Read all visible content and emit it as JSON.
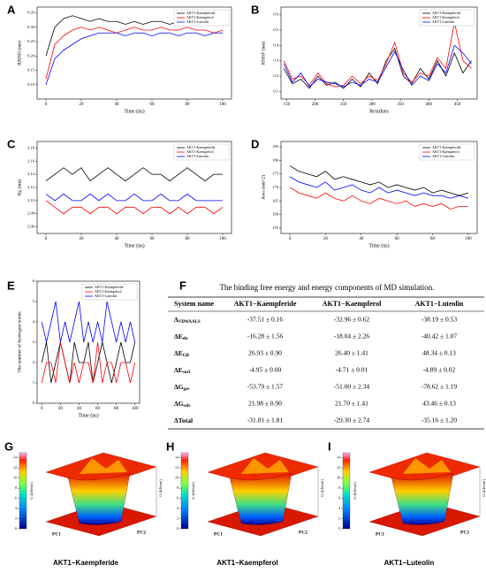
{
  "chart_data": [
    {
      "type": "line",
      "panel": "A",
      "xlabel": "Time (ns)",
      "ylabel": "RMSD (nm)",
      "x": [
        0,
        5,
        10,
        15,
        20,
        25,
        30,
        35,
        40,
        45,
        50,
        55,
        60,
        65,
        70,
        75,
        80,
        85,
        90,
        95,
        100
      ],
      "xlim": [
        -5,
        105
      ],
      "xticks": [
        0,
        20,
        40,
        60,
        80,
        100
      ],
      "ylim": [
        0.05,
        0.37
      ],
      "yticks": [
        {
          "value": 0.1,
          "label": "0.10"
        },
        0.15,
        {
          "value": 0.2,
          "label": "0.20"
        },
        0.25,
        {
          "value": 0.3,
          "label": "0.30"
        },
        0.35
      ],
      "legend": "upper right",
      "series": [
        {
          "name": "AKT1-Kaempferide",
          "color": "#000000",
          "values": [
            0.2,
            0.3,
            0.33,
            0.34,
            0.33,
            0.32,
            0.33,
            0.32,
            0.32,
            0.31,
            0.32,
            0.31,
            0.32,
            0.32,
            0.31,
            0.32,
            0.32,
            0.31,
            0.32,
            0.32,
            0.31
          ]
        },
        {
          "name": "AKT1-Kaempferol",
          "color": "#ff0000",
          "values": [
            0.12,
            0.24,
            0.27,
            0.29,
            0.3,
            0.29,
            0.3,
            0.29,
            0.28,
            0.29,
            0.3,
            0.29,
            0.29,
            0.3,
            0.29,
            0.29,
            0.3,
            0.29,
            0.29,
            0.28,
            0.29
          ]
        },
        {
          "name": "AKT1-Luteolin",
          "color": "#0000ff",
          "values": [
            0.1,
            0.19,
            0.22,
            0.24,
            0.26,
            0.27,
            0.28,
            0.28,
            0.28,
            0.27,
            0.28,
            0.28,
            0.27,
            0.28,
            0.28,
            0.27,
            0.28,
            0.28,
            0.27,
            0.28,
            0.28
          ]
        }
      ]
    },
    {
      "type": "line",
      "panel": "B",
      "xlabel": "Residues",
      "ylabel": "RMSF (nm)",
      "x": [
        145,
        160,
        175,
        190,
        205,
        220,
        235,
        250,
        265,
        280,
        295,
        310,
        325,
        340,
        355,
        370,
        385,
        400,
        415,
        430,
        445,
        460,
        475
      ],
      "xlim": [
        140,
        485
      ],
      "xticks": [
        150,
        200,
        250,
        300,
        350,
        400,
        450
      ],
      "ylim": [
        0.05,
        0.65
      ],
      "yticks": [
        0.1,
        0.2,
        0.3,
        0.4,
        0.5,
        0.6
      ],
      "legend": "upper right",
      "series": [
        {
          "name": "AKT1-Kaempferide",
          "color": "#000000",
          "values": [
            0.25,
            0.15,
            0.18,
            0.12,
            0.2,
            0.14,
            0.16,
            0.12,
            0.18,
            0.13,
            0.22,
            0.15,
            0.3,
            0.38,
            0.2,
            0.15,
            0.25,
            0.18,
            0.3,
            0.2,
            0.35,
            0.22,
            0.3
          ]
        },
        {
          "name": "AKT1-Kaempferol",
          "color": "#ff0000",
          "values": [
            0.3,
            0.18,
            0.2,
            0.14,
            0.22,
            0.15,
            0.13,
            0.14,
            0.2,
            0.15,
            0.2,
            0.17,
            0.28,
            0.42,
            0.22,
            0.16,
            0.22,
            0.2,
            0.32,
            0.25,
            0.55,
            0.3,
            0.25
          ]
        },
        {
          "name": "AKT1-Luteolin",
          "color": "#0000ff",
          "values": [
            0.28,
            0.16,
            0.22,
            0.13,
            0.18,
            0.16,
            0.15,
            0.13,
            0.16,
            0.14,
            0.18,
            0.16,
            0.26,
            0.36,
            0.24,
            0.14,
            0.2,
            0.17,
            0.28,
            0.22,
            0.4,
            0.35,
            0.28
          ]
        }
      ]
    },
    {
      "type": "line",
      "panel": "C",
      "xlabel": "Time (ns)",
      "ylabel": "Rg (nm)",
      "x": [
        0,
        5,
        10,
        15,
        20,
        25,
        30,
        35,
        40,
        45,
        50,
        55,
        60,
        65,
        70,
        75,
        80,
        85,
        90,
        95,
        100
      ],
      "xlim": [
        -5,
        105
      ],
      "xticks": [
        0,
        20,
        40,
        60,
        80,
        100
      ],
      "ylim": [
        2.05,
        2.19
      ],
      "yticks": [
        2.06,
        2.08,
        {
          "value": 2.1,
          "label": "2.10"
        },
        2.12,
        2.14,
        2.16,
        2.18
      ],
      "legend": "upper right",
      "series": [
        {
          "name": "AKT1-Kaempferide",
          "color": "#000000",
          "values": [
            2.13,
            2.14,
            2.15,
            2.14,
            2.15,
            2.13,
            2.14,
            2.15,
            2.14,
            2.13,
            2.14,
            2.15,
            2.14,
            2.14,
            2.13,
            2.14,
            2.15,
            2.14,
            2.13,
            2.14,
            2.14
          ]
        },
        {
          "name": "AKT1-Kaempferol",
          "color": "#ff0000",
          "values": [
            2.1,
            2.09,
            2.08,
            2.09,
            2.09,
            2.08,
            2.09,
            2.09,
            2.08,
            2.09,
            2.09,
            2.08,
            2.09,
            2.09,
            2.08,
            2.09,
            2.08,
            2.09,
            2.09,
            2.08,
            2.09
          ]
        },
        {
          "name": "AKT1-Luteolin",
          "color": "#0000ff",
          "values": [
            2.11,
            2.1,
            2.11,
            2.1,
            2.1,
            2.11,
            2.1,
            2.11,
            2.1,
            2.1,
            2.11,
            2.1,
            2.1,
            2.11,
            2.1,
            2.1,
            2.11,
            2.1,
            2.1,
            2.1,
            2.1
          ]
        }
      ]
    },
    {
      "type": "line",
      "panel": "D",
      "xlabel": "Time (ns)",
      "ylabel": "Area (nm^2)",
      "x": [
        0,
        5,
        10,
        15,
        20,
        25,
        30,
        35,
        40,
        45,
        50,
        55,
        60,
        65,
        70,
        75,
        80,
        85,
        90,
        95,
        100
      ],
      "xlim": [
        -5,
        105
      ],
      "xticks": [
        0,
        20,
        40,
        60,
        80,
        100
      ],
      "ylim": [
        153,
        187
      ],
      "yticks": [
        155,
        160,
        165,
        170,
        175,
        180,
        185
      ],
      "legend": "upper right",
      "series": [
        {
          "name": "AKT1-Kaempferide",
          "color": "#000000",
          "values": [
            178,
            176,
            175,
            174,
            176,
            173,
            174,
            173,
            172,
            171,
            172,
            170,
            171,
            170,
            169,
            170,
            168,
            169,
            168,
            167,
            168
          ]
        },
        {
          "name": "AKT1-Kaempferol",
          "color": "#ff0000",
          "values": [
            170,
            168,
            167,
            166,
            168,
            166,
            165,
            167,
            165,
            164,
            166,
            165,
            164,
            165,
            163,
            164,
            163,
            164,
            162,
            163,
            163
          ]
        },
        {
          "name": "AKT1-Luteolin",
          "color": "#0000ff",
          "values": [
            174,
            172,
            171,
            170,
            172,
            169,
            170,
            171,
            169,
            168,
            170,
            168,
            169,
            168,
            167,
            168,
            167,
            167,
            166,
            167,
            166
          ]
        }
      ]
    },
    {
      "type": "line",
      "panel": "E",
      "xlabel": "Time (ns)",
      "ylabel": "The number of hydrogen bonds",
      "x": [
        0,
        5,
        10,
        15,
        20,
        25,
        30,
        35,
        40,
        45,
        50,
        55,
        60,
        65,
        70,
        75,
        80,
        85,
        90,
        95,
        100
      ],
      "xlim": [
        -5,
        105
      ],
      "xticks": [
        0,
        20,
        40,
        60,
        80,
        100
      ],
      "ylim": [
        0,
        6
      ],
      "yticks": [
        0,
        1,
        2,
        3,
        4,
        5,
        6
      ],
      "legend": "upper right",
      "series": [
        {
          "name": "AKT1-Kaempferide",
          "color": "#000000",
          "values": [
            2,
            3,
            1,
            2,
            3,
            2,
            1,
            3,
            2,
            2,
            3,
            1,
            2,
            3,
            2,
            1,
            2,
            3,
            2,
            2,
            3
          ]
        },
        {
          "name": "AKT1-Kaempferol",
          "color": "#ff0000",
          "values": [
            1,
            2,
            2,
            1,
            3,
            2,
            1,
            2,
            1,
            2,
            2,
            1,
            3,
            1,
            2,
            2,
            1,
            2,
            2,
            1,
            2
          ]
        },
        {
          "name": "AKT1-Luteolin",
          "color": "#0000ff",
          "values": [
            4,
            3,
            4,
            5,
            3,
            4,
            3,
            4,
            5,
            3,
            4,
            3,
            4,
            3,
            5,
            4,
            3,
            4,
            3,
            4,
            3
          ]
        }
      ]
    },
    {
      "type": "table",
      "panel": "F",
      "title": "The binding free energy and energy components of MD simulation.",
      "header": [
        "System name",
        "AKT1−Kaempferide",
        "AKT1−Kaempferol",
        "AKT1−Luteolin"
      ],
      "rows": [
        [
          [
            "Δ",
            "VDWAALS"
          ],
          "-37.51 ± 0.16",
          "-32.96 ± 0.62",
          "-38.19 ± 0.53"
        ],
        [
          [
            "ΔE",
            "ele"
          ],
          "-16.28 ± 1.56",
          "-18.04 ± 2.26",
          "-40.42 ± 1.07"
        ],
        [
          [
            "ΔE",
            "GB"
          ],
          "26.93 ± 0.90",
          "26.40 ± 1.41",
          "48.34 ± 0.13"
        ],
        [
          [
            "ΔE",
            "surf"
          ],
          "-4.95 ± 0.00",
          "-4.71 ± 0.01",
          "-4.89 ± 0.02"
        ],
        [
          [
            "ΔG",
            "gas"
          ],
          "-53.79 ± 1.57",
          "-51.00 ± 2.34",
          "-78.62 ± 1.19"
        ],
        [
          [
            "ΔG",
            "solv"
          ],
          "21.98 ± 0.90",
          "21.70 ± 1.41",
          "43.46 ± 0.13"
        ],
        [
          [
            "ΔTotal"
          ],
          "-31.81 ± 1.81",
          "-29.30 ± 2.74",
          "-35.16 ± 1.20"
        ]
      ]
    },
    {
      "type": "surface",
      "panel": "G",
      "title": "AKT1−Kaempferide",
      "colorbar_label": "G (kJ/mol)",
      "xlabel": "PC1",
      "ylabel": "PC2",
      "zlabel": "G (kJ/mol)",
      "clim": [
        0,
        15
      ],
      "cticks": [
        0,
        2,
        4,
        6,
        8,
        10,
        12,
        14
      ]
    },
    {
      "type": "surface",
      "panel": "H",
      "title": "AKT1−Kaempferol",
      "colorbar_label": "G (kJ/mol)",
      "xlabel": "PC1",
      "ylabel": "PC2",
      "zlabel": "G (kJ/mol)",
      "clim": [
        0,
        15
      ],
      "cticks": [
        0,
        2,
        4,
        6,
        8,
        10,
        12,
        14
      ]
    },
    {
      "type": "surface",
      "panel": "I",
      "title": "AKT1−Luteolin",
      "colorbar_label": "G (kJ/mol)",
      "xlabel": "PC1",
      "ylabel": "PC2",
      "zlabel": "G (kJ/mol)",
      "clim": [
        0,
        15
      ],
      "cticks": [
        0,
        2,
        4,
        6,
        8,
        10,
        12,
        14
      ]
    }
  ]
}
